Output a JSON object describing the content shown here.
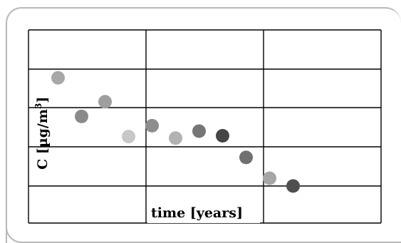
{
  "chart_data": {
    "type": "scatter",
    "xlabel": "time [years]",
    "ylabel": "C [µg/m³]",
    "ylabel_base": "C [µg/m",
    "ylabel_sup": "3",
    "ylabel_close": "]",
    "grid": true,
    "xlim": [
      0,
      3
    ],
    "ylim": [
      0,
      5
    ],
    "points": [
      {
        "x": 0.2,
        "y": 3.76,
        "color": "#a8a8a8"
      },
      {
        "x": 0.4,
        "y": 2.76,
        "color": "#8a8a8a"
      },
      {
        "x": 0.6,
        "y": 3.14,
        "color": "#9e9e9e"
      },
      {
        "x": 0.8,
        "y": 2.24,
        "color": "#c8c8c8"
      },
      {
        "x": 1.0,
        "y": 2.52,
        "color": "#8e8e8e"
      },
      {
        "x": 1.2,
        "y": 2.2,
        "color": "#b2b2b2"
      },
      {
        "x": 1.4,
        "y": 2.38,
        "color": "#767676"
      },
      {
        "x": 1.6,
        "y": 2.26,
        "color": "#454545"
      },
      {
        "x": 1.8,
        "y": 1.7,
        "color": "#707070"
      },
      {
        "x": 2.0,
        "y": 1.16,
        "color": "#a6a6a6"
      },
      {
        "x": 2.2,
        "y": 0.96,
        "color": "#4e4e4e"
      }
    ]
  }
}
